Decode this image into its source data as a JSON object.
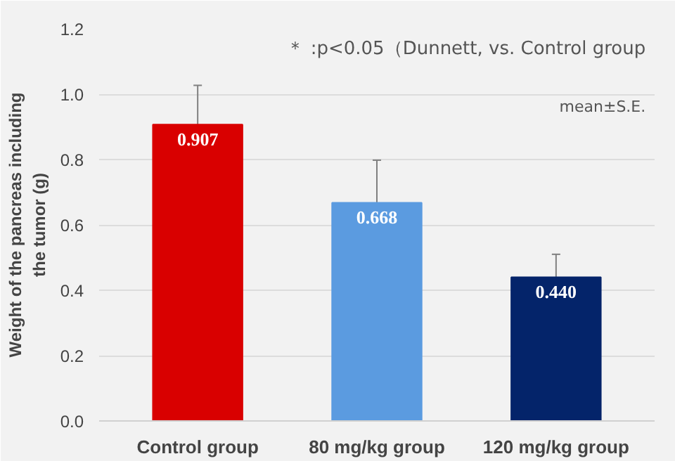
{
  "chart_data": {
    "type": "bar",
    "ylabel": "Weight of the pancreas including\nthe tumor (g)",
    "categories": [
      "Control group",
      "80 mg/kg group",
      "120 mg/kg group"
    ],
    "values": [
      0.907,
      0.668,
      0.44
    ],
    "colors": [
      "#d90000",
      "#5b9be0",
      "#04246a"
    ],
    "errors": [
      0.12,
      0.13,
      0.07
    ],
    "value_labels": [
      "0.907",
      "0.668",
      "0.440"
    ],
    "ylim": [
      0,
      1.2
    ],
    "yticks": [
      {
        "value": 0,
        "label": "0.0"
      },
      {
        "value": 0.2,
        "label": "0.2"
      },
      {
        "value": 0.4,
        "label": "0.4"
      },
      {
        "value": 0.6,
        "label": "0.6"
      },
      {
        "value": 0.8,
        "label": "0.8"
      },
      {
        "value": 1,
        "label": "1.0"
      },
      {
        "value": 1.2,
        "label": "1.2"
      }
    ],
    "grid": "y",
    "annotations": [
      "＊ :p<0.05（Dunnett, vs. Control group",
      "mean±S.E."
    ]
  }
}
